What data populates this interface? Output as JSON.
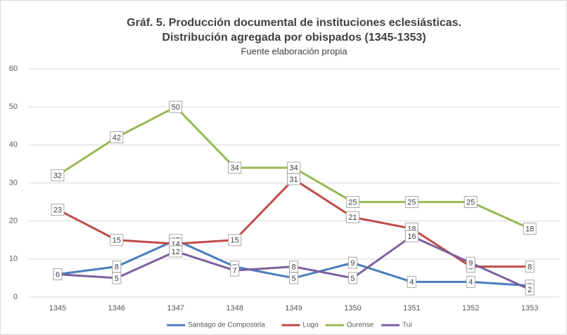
{
  "chart_data": {
    "type": "line",
    "title": "Gráf. 5. Producción documental de instituciones eclesiásticas.",
    "subtitle_line2": "Distribución agregada por obispados (1345-1353)",
    "subtitle": "Fuente elaboración propia",
    "categories": [
      "1345",
      "1346",
      "1347",
      "1348",
      "1349",
      "1350",
      "1351",
      "1352",
      "1353"
    ],
    "series": [
      {
        "name": "Santiago de Compostela",
        "color": "#4a7ebb",
        "values": [
          6,
          8,
          15,
          8,
          5,
          9,
          4,
          4,
          3
        ]
      },
      {
        "name": "Lugo",
        "color": "#be4b48",
        "values": [
          23,
          15,
          14,
          15,
          31,
          21,
          18,
          8,
          8
        ]
      },
      {
        "name": "Ourense",
        "color": "#98b954",
        "values": [
          32,
          42,
          50,
          34,
          34,
          25,
          25,
          25,
          18
        ]
      },
      {
        "name": "Tui",
        "color": "#7d60a0",
        "values": [
          6,
          5,
          12,
          7,
          8,
          5,
          16,
          9,
          2
        ]
      }
    ],
    "ylim": [
      0,
      60
    ],
    "yticks": [
      0,
      10,
      20,
      30,
      40,
      50,
      60
    ],
    "grid": true,
    "legend": "bottom"
  }
}
